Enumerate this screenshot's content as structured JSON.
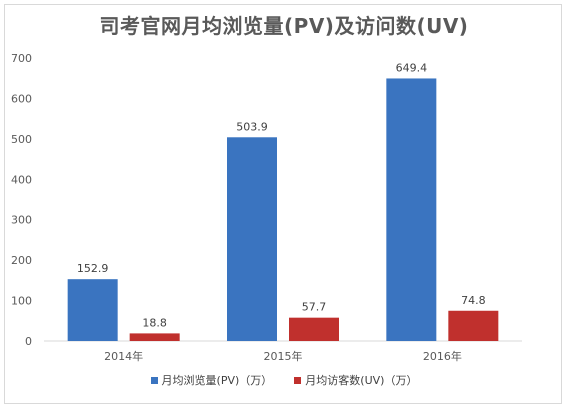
{
  "chart_data": {
    "type": "bar",
    "title": "司考官网月均浏览量(PV)及访问数(UV)",
    "categories": [
      "2014年",
      "2015年",
      "2016年"
    ],
    "series": [
      {
        "name": "月均浏览量(PV)（万）",
        "values": [
          152.9,
          503.9,
          649.4
        ],
        "color": "#3a74c0"
      },
      {
        "name": "月均访客数(UV)（万）",
        "values": [
          18.8,
          57.7,
          74.8
        ],
        "color": "#c0302d"
      }
    ],
    "data_labels": {
      "pv": [
        "152.9",
        "503.9",
        "649.4"
      ],
      "uv": [
        "18.8",
        "57.7",
        "74.8"
      ]
    },
    "xlabel": "",
    "ylabel": "",
    "ylim": [
      0,
      700
    ],
    "yticks": [
      "0",
      "100",
      "200",
      "300",
      "400",
      "500",
      "600",
      "700"
    ],
    "grid": false,
    "legend_position": "bottom"
  }
}
